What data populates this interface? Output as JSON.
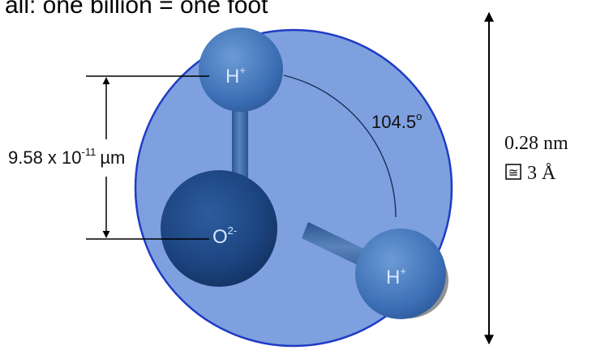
{
  "header": {
    "caption_cut": "all: one billion = one foot"
  },
  "molecule": {
    "atoms": [
      {
        "id": "hydrogen-top",
        "label_base": "H",
        "label_sup": "+"
      },
      {
        "id": "oxygen",
        "label_base": "O",
        "label_sup": "2-"
      },
      {
        "id": "hydrogen-bottom",
        "label_base": "H",
        "label_sup": "+"
      }
    ],
    "bond_angle": {
      "value": "104.5",
      "unit": "o"
    }
  },
  "bond_length": {
    "mantissa": "9.58 x 10",
    "exponent": "-11",
    "unit": "µm"
  },
  "diameter": {
    "line1": "0.28 nm",
    "symbol_glyph": "≅",
    "line2_value": "3 Å"
  },
  "colors": {
    "sphere_fill": "#7ea0df",
    "sphere_stroke": "#1f3cc4",
    "oxygen": "#1a3f7f",
    "hydrogen": "#356bb1",
    "atom_label": "#d6e6fb",
    "dim_line": "#000000",
    "text": "#111111"
  }
}
